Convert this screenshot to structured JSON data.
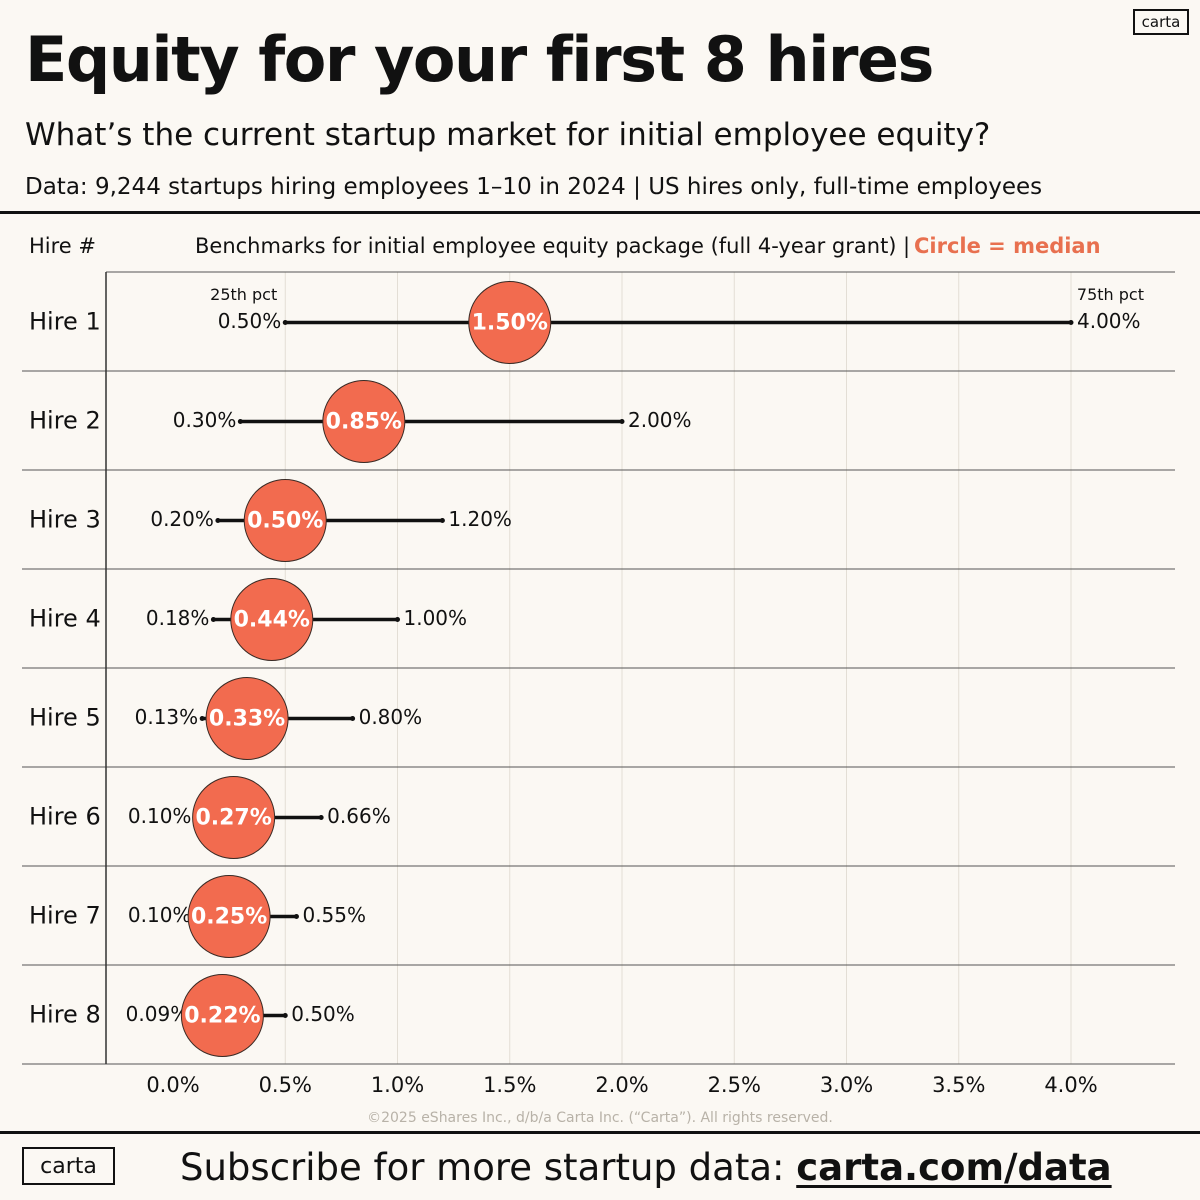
{
  "brand": {
    "logo": "carta"
  },
  "header": {
    "title": "Equity for your first 8 hires",
    "subtitle": "What’s the current startup market for initial employee equity?",
    "data_note": "Data: 9,244 startups hiring employees 1–10 in 2024 | US hires only, full-time employees"
  },
  "chart_data": {
    "type": "range-dot",
    "row_header": "Hire #",
    "column_header": "Benchmarks for initial employee equity package (full 4-year grant)",
    "legend_separator": "|",
    "legend": "Circle = median",
    "p25_label": "25th pct",
    "p75_label": "75th pct",
    "x_ticks": [
      "0.0%",
      "0.5%",
      "1.0%",
      "1.5%",
      "2.0%",
      "2.5%",
      "3.0%",
      "3.5%",
      "4.0%"
    ],
    "x_range": [
      0,
      4.0
    ],
    "grid": true,
    "colors": {
      "median": "#f26b4f",
      "line": "#111111",
      "grid": "#e3ded5",
      "legend": "#e8704f"
    },
    "rows": [
      {
        "name": "Hire 1",
        "p25": 0.5,
        "median": 1.5,
        "p75": 4.0,
        "p25_label": "0.50%",
        "median_label": "1.50%",
        "p75_label": "4.00%"
      },
      {
        "name": "Hire 2",
        "p25": 0.3,
        "median": 0.85,
        "p75": 2.0,
        "p25_label": "0.30%",
        "median_label": "0.85%",
        "p75_label": "2.00%"
      },
      {
        "name": "Hire 3",
        "p25": 0.2,
        "median": 0.5,
        "p75": 1.2,
        "p25_label": "0.20%",
        "median_label": "0.50%",
        "p75_label": "1.20%"
      },
      {
        "name": "Hire 4",
        "p25": 0.18,
        "median": 0.44,
        "p75": 1.0,
        "p25_label": "0.18%",
        "median_label": "0.44%",
        "p75_label": "1.00%"
      },
      {
        "name": "Hire 5",
        "p25": 0.13,
        "median": 0.33,
        "p75": 0.8,
        "p25_label": "0.13%",
        "median_label": "0.33%",
        "p75_label": "0.80%"
      },
      {
        "name": "Hire 6",
        "p25": 0.1,
        "median": 0.27,
        "p75": 0.66,
        "p25_label": "0.10%",
        "median_label": "0.27%",
        "p75_label": "0.66%"
      },
      {
        "name": "Hire 7",
        "p25": 0.1,
        "median": 0.25,
        "p75": 0.55,
        "p25_label": "0.10%",
        "median_label": "0.25%",
        "p75_label": "0.55%"
      },
      {
        "name": "Hire 8",
        "p25": 0.09,
        "median": 0.22,
        "p75": 0.5,
        "p25_label": "0.09%",
        "median_label": "0.22%",
        "p75_label": "0.50%"
      }
    ],
    "copyright": "©2025 eShares Inc., d/b/a Carta Inc. (“Carta”). All rights reserved."
  },
  "footer": {
    "text": "Subscribe for more startup data: ",
    "link": "carta.com/data"
  }
}
